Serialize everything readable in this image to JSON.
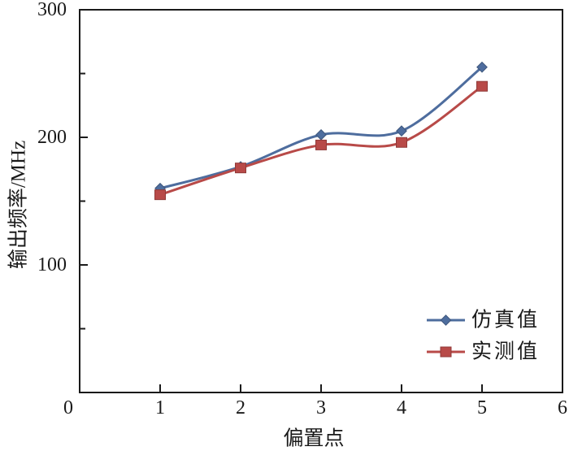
{
  "figure": {
    "background_color": "#ffffff",
    "text_color": "#1a1a1a"
  },
  "chart_data": {
    "type": "line",
    "title": "",
    "xlabel": "偏置点",
    "ylabel": "输出频率/MHz",
    "xlim": [
      0,
      6
    ],
    "ylim": [
      0,
      300
    ],
    "x_major_ticks": [
      0,
      1,
      2,
      3,
      4,
      5,
      6
    ],
    "x_tick_labels": [
      "0",
      "1",
      "2",
      "3",
      "4",
      "5",
      "6"
    ],
    "y_major_ticks": [
      100,
      200,
      300
    ],
    "y_tick_labels": [
      "100",
      "200",
      "300"
    ],
    "y_minor_ticks": [
      50,
      150,
      250
    ],
    "grid": "off",
    "line_style": "smooth",
    "axis_color": "#1a1a1a",
    "x": [
      1,
      2,
      3,
      4,
      5
    ],
    "series": [
      {
        "name": "仿真值",
        "marker": "diamond",
        "color": "#4e6d9e",
        "values": [
          160,
          177,
          202,
          205,
          255
        ]
      },
      {
        "name": "实测值",
        "marker": "square",
        "color": "#b84a48",
        "values": [
          155,
          176,
          194,
          196,
          240
        ]
      }
    ],
    "legend": {
      "position": "inside-bottom-right",
      "items": [
        "仿真值",
        "实测值"
      ]
    }
  }
}
